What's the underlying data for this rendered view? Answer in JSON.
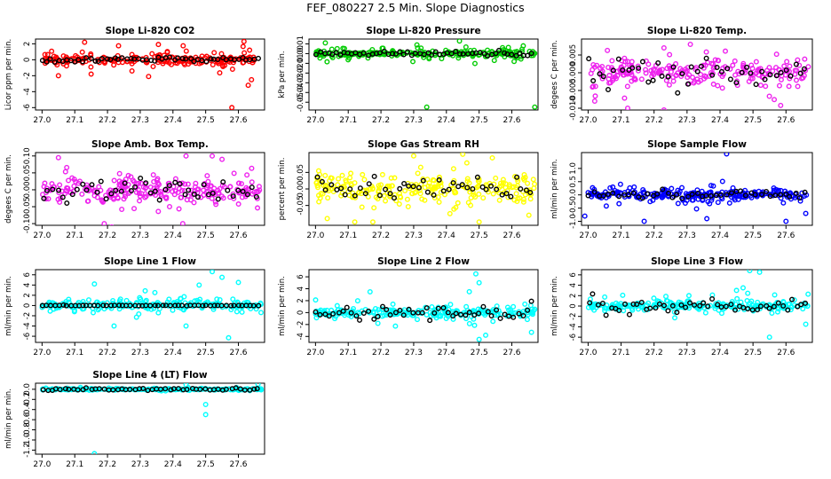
{
  "page_title": "FEF_080227  2.5 Min. Slope Diagnostics",
  "colors": {
    "black": "#000000",
    "red": "#ff0000",
    "green": "#00cc00",
    "magenta": "#ee22ee",
    "yellow": "#ffff00",
    "blue": "#0000ff",
    "cyan": "#00ffff"
  },
  "chart_data": [
    {
      "type": "scatter",
      "title": "Slope Li-820 CO2",
      "ylabel": "Licor ppm per min.",
      "color": "red",
      "xlim": [
        26.98,
        27.68
      ],
      "ylim": [
        -6.3,
        2.6
      ],
      "yticks": [
        -6,
        -4,
        -2,
        0,
        2
      ],
      "yticklabels": [
        "-6",
        "-4",
        "-2",
        "0",
        "2"
      ],
      "xticks": [
        27.0,
        27.1,
        27.2,
        27.3,
        27.4,
        27.5,
        27.6
      ],
      "xticklabels": [
        "27.0",
        "27.1",
        "27.2",
        "27.3",
        "27.4",
        "27.5",
        "27.6"
      ],
      "spread": 0.45,
      "wide": 1.4,
      "color_pts": 220,
      "black_pts": 55,
      "black_spread": 0.25,
      "outliers": [
        [
          27.13,
          2.2
        ],
        [
          27.05,
          -2.0
        ],
        [
          27.15,
          -1.8
        ],
        [
          27.58,
          -6.0
        ],
        [
          27.63,
          -3.2
        ],
        [
          27.64,
          -2.5
        ]
      ]
    },
    {
      "type": "scatter",
      "title": "Slope Li-820 Pressure",
      "ylabel": "kPa per min.",
      "color": "green",
      "xlim": [
        26.98,
        27.68
      ],
      "ylim": [
        -0.058,
        0.015
      ],
      "yticks": [
        -0.05,
        -0.04,
        -0.03,
        -0.02,
        -0.01,
        0.0,
        0.01
      ],
      "yticklabels": [
        "-0.05",
        "-0.04",
        "-0.03",
        "-0.02",
        "-0.01",
        "0.00",
        "0.01"
      ],
      "xticks": [
        27.0,
        27.1,
        27.2,
        27.3,
        27.4,
        27.5,
        27.6
      ],
      "xticklabels": [
        "27.0",
        "27.1",
        "27.2",
        "27.3",
        "27.4",
        "27.5",
        "27.6"
      ],
      "spread": 0.002,
      "wide": 0.007,
      "color_pts": 220,
      "black_pts": 55,
      "black_spread": 0.002,
      "outliers": [
        [
          27.34,
          -0.055
        ],
        [
          27.67,
          -0.055
        ],
        [
          27.03,
          0.011
        ],
        [
          27.44,
          0.013
        ],
        [
          27.31,
          0.009
        ]
      ]
    },
    {
      "type": "scatter",
      "title": "Slope Li-820 Temp.",
      "ylabel": "degees C per min.",
      "color": "magenta",
      "xlim": [
        26.98,
        27.68
      ],
      "ylim": [
        -0.0105,
        0.0095
      ],
      "yticks": [
        -0.01,
        -0.005,
        0.0,
        0.005
      ],
      "yticklabels": [
        "-0.010",
        "-0.005",
        "0.000",
        "0.005"
      ],
      "xticks": [
        27.0,
        27.1,
        27.2,
        27.3,
        27.4,
        27.5,
        27.6
      ],
      "xticklabels": [
        "27.0",
        "27.1",
        "27.2",
        "27.3",
        "27.4",
        "27.5",
        "27.6"
      ],
      "spread": 0.003,
      "wide": 0.006,
      "color_pts": 220,
      "black_pts": 45,
      "black_spread": 0.004,
      "outliers": [
        [
          27.31,
          0.008
        ],
        [
          27.23,
          0.007
        ],
        [
          27.12,
          -0.01
        ],
        [
          27.23,
          -0.0105
        ],
        [
          27.02,
          -0.008
        ]
      ]
    },
    {
      "type": "scatter",
      "title": "Slope Amb. Box Temp.",
      "ylabel": "degees C per min.",
      "color": "magenta",
      "xlim": [
        26.98,
        27.68
      ],
      "ylim": [
        -0.105,
        0.11
      ],
      "yticks": [
        -0.1,
        -0.05,
        0.0,
        0.05,
        0.1
      ],
      "yticklabels": [
        "-0.10",
        "-0.05",
        "0.00",
        "0.05",
        "0.10"
      ],
      "xticks": [
        27.0,
        27.1,
        27.2,
        27.3,
        27.4,
        27.5,
        27.6
      ],
      "xticklabels": [
        "27.0",
        "27.1",
        "27.2",
        "27.3",
        "27.4",
        "27.5",
        "27.6"
      ],
      "spread": 0.03,
      "wide": 0.06,
      "color_pts": 240,
      "black_pts": 45,
      "black_spread": 0.03,
      "outliers": [
        [
          27.05,
          0.095
        ],
        [
          27.44,
          0.1
        ],
        [
          27.52,
          0.1
        ],
        [
          27.55,
          0.09
        ],
        [
          27.19,
          -0.1
        ],
        [
          27.43,
          -0.1
        ]
      ]
    },
    {
      "type": "scatter",
      "title": "Slope Gas Stream RH",
      "ylabel": "percent per min.",
      "color": "yellow",
      "xlim": [
        26.98,
        27.68
      ],
      "ylim": [
        -0.11,
        0.11
      ],
      "yticks": [
        -0.05,
        0.0,
        0.05
      ],
      "yticklabels": [
        "-0.05",
        "0.00",
        "0.05"
      ],
      "xticks": [
        27.0,
        27.1,
        27.2,
        27.3,
        27.4,
        27.5,
        27.6
      ],
      "xticklabels": [
        "27.0",
        "27.1",
        "27.2",
        "27.3",
        "27.4",
        "27.5",
        "27.6"
      ],
      "spread": 0.035,
      "wide": 0.07,
      "color_pts": 240,
      "black_pts": 45,
      "black_spread": 0.03,
      "outliers": [
        [
          27.45,
          0.105
        ],
        [
          27.3,
          0.1
        ],
        [
          27.12,
          -0.1
        ],
        [
          27.5,
          -0.1
        ]
      ]
    },
    {
      "type": "scatter",
      "title": "Slope Sample Flow",
      "ylabel": "ml/min per min.",
      "color": "blue",
      "xlim": [
        26.98,
        27.68
      ],
      "ylim": [
        -1.15,
        1.6
      ],
      "yticks": [
        -1.0,
        -0.5,
        0.0,
        0.5,
        1.0
      ],
      "yticklabels": [
        "-1.0",
        "-0.5",
        "0.0",
        "0.5",
        "1.0"
      ],
      "xticks": [
        27.0,
        27.1,
        27.2,
        27.3,
        27.4,
        27.5,
        27.6
      ],
      "xticklabels": [
        "27.0",
        "27.1",
        "27.2",
        "27.3",
        "27.4",
        "27.5",
        "27.6"
      ],
      "spread": 0.12,
      "wide": 0.35,
      "color_pts": 240,
      "black_pts": 45,
      "black_spread": 0.12,
      "outliers": [
        [
          27.42,
          1.55
        ],
        [
          27.17,
          -1.0
        ],
        [
          27.36,
          -0.9
        ],
        [
          27.6,
          -1.0
        ],
        [
          26.99,
          -0.8
        ],
        [
          27.66,
          -0.7
        ]
      ]
    },
    {
      "type": "scatter",
      "title": "Slope Line 1 Flow",
      "ylabel": "ml/min per min.",
      "color": "cyan",
      "xlim": [
        26.98,
        27.68
      ],
      "ylim": [
        -7.2,
        7.0
      ],
      "yticks": [
        -6,
        -4,
        -2,
        0,
        2,
        4,
        6
      ],
      "yticklabels": [
        "-6",
        "-4",
        "-2",
        "0",
        "2",
        "4",
        "6"
      ],
      "xticks": [
        27.0,
        27.1,
        27.2,
        27.3,
        27.4,
        27.5,
        27.6
      ],
      "xticklabels": [
        "27.0",
        "27.1",
        "27.2",
        "27.3",
        "27.4",
        "27.5",
        "27.6"
      ],
      "spread": 0.6,
      "wide": 1.8,
      "color_pts": 230,
      "black_pts": 55,
      "black_spread": 0.05,
      "outliers": [
        [
          27.52,
          6.6
        ],
        [
          27.55,
          5.5
        ],
        [
          27.48,
          4.0
        ],
        [
          27.6,
          4.5
        ],
        [
          27.16,
          4.2
        ],
        [
          27.57,
          -6.3
        ],
        [
          27.44,
          -4.0
        ],
        [
          27.22,
          -4.0
        ]
      ]
    },
    {
      "type": "scatter",
      "title": "Slope Line 2 Flow",
      "ylabel": "ml/min per min.",
      "color": "cyan",
      "xlim": [
        26.98,
        27.68
      ],
      "ylim": [
        -5.0,
        7.2
      ],
      "yticks": [
        -4,
        -2,
        0,
        2,
        4,
        6
      ],
      "yticklabels": [
        "-4",
        "-2",
        "0",
        "2",
        "4",
        "6"
      ],
      "xticks": [
        27.0,
        27.1,
        27.2,
        27.3,
        27.4,
        27.5,
        27.6
      ],
      "xticklabels": [
        "27.0",
        "27.1",
        "27.2",
        "27.3",
        "27.4",
        "27.5",
        "27.6"
      ],
      "spread": 0.6,
      "wide": 1.8,
      "color_pts": 230,
      "black_pts": 50,
      "black_spread": 1.0,
      "outliers": [
        [
          27.49,
          6.5
        ],
        [
          27.5,
          5.0
        ],
        [
          27.47,
          3.5
        ],
        [
          27.5,
          -4.5
        ],
        [
          27.52,
          -3.8
        ],
        [
          27.66,
          -3.3
        ]
      ]
    },
    {
      "type": "scatter",
      "title": "Slope Line 3 Flow",
      "ylabel": "ml/min per min.",
      "color": "cyan",
      "xlim": [
        26.98,
        27.68
      ],
      "ylim": [
        -7.0,
        7.0
      ],
      "yticks": [
        -6,
        -4,
        -2,
        0,
        2,
        4,
        6
      ],
      "yticklabels": [
        "-6",
        "-4",
        "-2",
        "0",
        "2",
        "4",
        "6"
      ],
      "xticks": [
        27.0,
        27.1,
        27.2,
        27.3,
        27.4,
        27.5,
        27.6
      ],
      "xticklabels": [
        "27.0",
        "27.1",
        "27.2",
        "27.3",
        "27.4",
        "27.5",
        "27.6"
      ],
      "spread": 0.6,
      "wide": 1.8,
      "color_pts": 230,
      "black_pts": 50,
      "black_spread": 1.0,
      "outliers": [
        [
          27.49,
          6.8
        ],
        [
          27.52,
          6.5
        ],
        [
          27.47,
          3.5
        ],
        [
          27.55,
          -6.0
        ],
        [
          27.66,
          -3.5
        ],
        [
          27.45,
          3.0
        ]
      ]
    },
    {
      "type": "scatter",
      "title": "Slope Line 4 (LT) Flow",
      "ylabel": "ml/min per min.",
      "color": "cyan",
      "xlim": [
        26.98,
        27.68
      ],
      "ylim": [
        -1.28,
        0.12
      ],
      "yticks": [
        -1.2,
        -1.0,
        -0.8,
        -0.6,
        -0.4,
        -0.2,
        0.0
      ],
      "yticklabels": [
        "-1.2",
        "-1.0",
        "-0.8",
        "-0.6",
        "-0.4",
        "-0.2",
        "0.0"
      ],
      "xticks": [
        27.0,
        27.1,
        27.2,
        27.3,
        27.4,
        27.5,
        27.6
      ],
      "xticklabels": [
        "27.0",
        "27.1",
        "27.2",
        "27.3",
        "27.4",
        "27.5",
        "27.6"
      ],
      "spread": 0.012,
      "wide": 0.03,
      "color_pts": 230,
      "black_pts": 50,
      "black_spread": 0.02,
      "outliers": [
        [
          27.16,
          -1.27
        ],
        [
          27.5,
          -0.5
        ],
        [
          27.5,
          -0.3
        ],
        [
          27.66,
          0.1
        ],
        [
          27.44,
          0.09
        ]
      ]
    }
  ]
}
